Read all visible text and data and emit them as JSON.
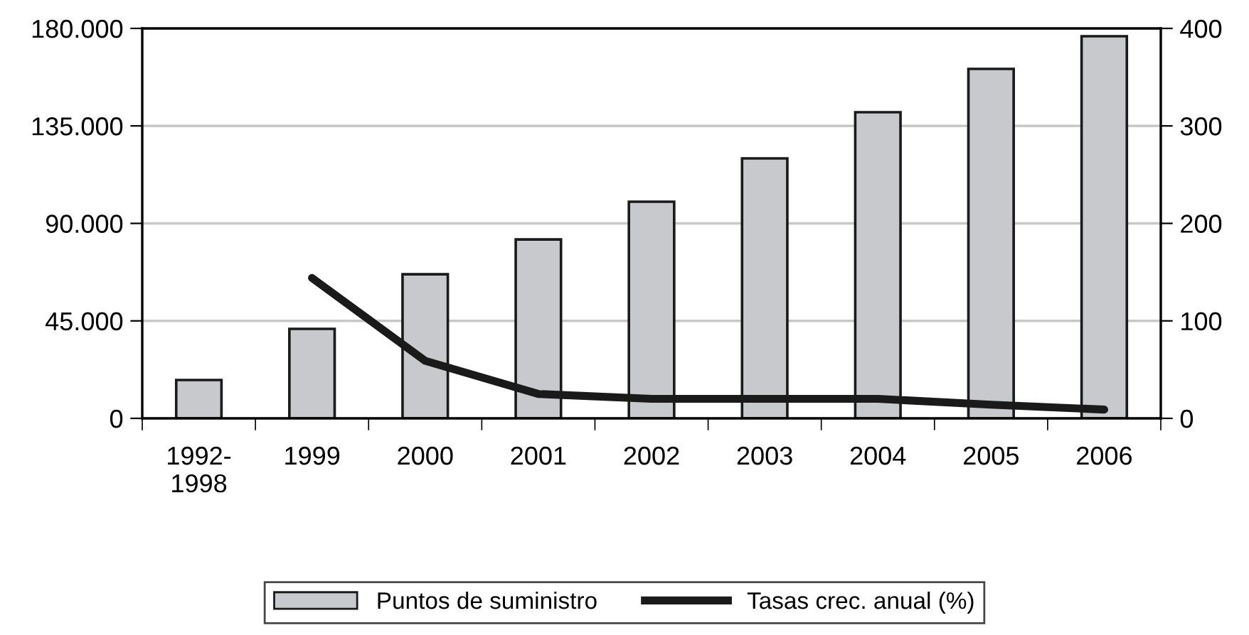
{
  "chart_data": {
    "type": "bar",
    "categories": [
      "1992-\n1998",
      "1999",
      "2000",
      "2001",
      "2002",
      "2003",
      "2004",
      "2005",
      "2006"
    ],
    "series": [
      {
        "name": "Puntos de suministro",
        "color": "#c8c9cc",
        "values": [
          17700,
          41300,
          66500,
          82600,
          100000,
          120000,
          141300,
          161300,
          176400
        ]
      },
      {
        "name": "Tasas crec. anual (%)",
        "type": "line",
        "axis": "y2",
        "color": "#1a1a1a",
        "values": [
          null,
          144,
          59,
          25,
          20,
          20,
          20,
          14,
          9
        ]
      }
    ],
    "ylim": [
      0,
      180000
    ],
    "yticks": [
      {
        "value": 0,
        "label": "0"
      },
      {
        "value": 45000,
        "label": "45.000"
      },
      {
        "value": 90000,
        "label": "90.000"
      },
      {
        "value": 135000,
        "label": "135.000"
      },
      {
        "value": 180000,
        "label": "180.000"
      }
    ],
    "y2lim": [
      0,
      400
    ],
    "y2ticks": [
      0,
      100,
      200,
      300,
      400
    ],
    "grid": "y",
    "legend": "bottom",
    "marker": "none",
    "line_style": "solid"
  }
}
